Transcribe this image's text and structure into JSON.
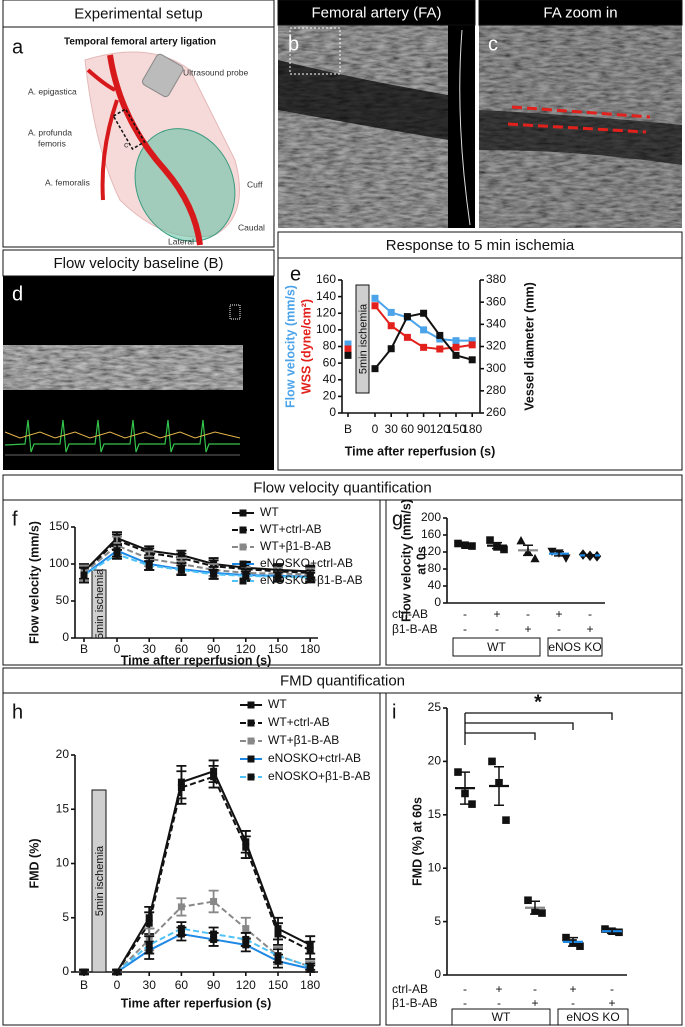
{
  "headers": {
    "setup": "Experimental setup",
    "femoral": "Femoral artery (FA)",
    "zoom": "FA zoom in",
    "response": "Response to 5 min ischemia",
    "baseline": "Flow velocity baseline (B)",
    "flow_quant": "Flow velocity quantification",
    "fmd_quant": "FMD quantification"
  },
  "panel_letters": [
    "a",
    "b",
    "c",
    "d",
    "e",
    "f",
    "g",
    "h",
    "i"
  ],
  "setup": {
    "title": "Temporal femoral artery ligation",
    "labels": [
      [
        "A. epigastica"
      ],
      [
        "Ultrasound probe"
      ],
      [
        "A. profunda",
        "femoris"
      ],
      [
        "c"
      ],
      [
        "A. femoralis"
      ],
      [
        "Cuff"
      ],
      [
        "Caudal"
      ],
      [
        "Lateral"
      ]
    ]
  },
  "chart_data": [
    {
      "type": "line",
      "categories": [
        "B",
        "0",
        "30",
        "60",
        "90",
        "120",
        "150",
        "180"
      ],
      "annotation": "5min ischemia",
      "connect_baseline": false,
      "xlabel": "Time after reperfusion (s)",
      "ylabel": [
        {
          "text": "Flow velocity (mm/s)",
          "color": "#4ba3ea"
        },
        {
          "text": "WSS (dyne/cm²)",
          "color": "#e3211c"
        }
      ],
      "y2label": "Vessel diameter (mm)",
      "ylim": [
        0,
        160
      ],
      "yticks": [
        0,
        20,
        40,
        60,
        80,
        100,
        120,
        140,
        160
      ],
      "y2lim": [
        260,
        380
      ],
      "y2ticks": [
        260,
        280,
        300,
        320,
        340,
        360,
        380
      ],
      "series": [
        {
          "color": "#4ba3ea",
          "values": [
            83,
            138,
            121,
            115,
            100,
            89,
            87,
            87
          ]
        },
        {
          "color": "#e3211c",
          "values": [
            77,
            129,
            105,
            91,
            79,
            77,
            79,
            82
          ]
        },
        {
          "color": "#111111",
          "axis": "y2",
          "values": [
            312,
            300,
            318,
            347,
            350,
            330,
            312,
            308
          ]
        }
      ]
    },
    {
      "type": "line",
      "categories": [
        "B",
        "0",
        "30",
        "60",
        "90",
        "120",
        "150",
        "180"
      ],
      "annotation": "5min ischemia",
      "connect_baseline": true,
      "legend": true,
      "xlabel": "Time after reperfusion (s)",
      "ylabel": "Flow velocity (mm/s)",
      "ylim": [
        0,
        150
      ],
      "yticks": [
        0,
        50,
        100,
        150
      ],
      "series": [
        {
          "name": "WT",
          "color": "#111111",
          "marker_color": "#111111",
          "dash": false,
          "values": [
            90,
            135,
            118,
            112,
            100,
            95,
            92,
            90
          ],
          "errors": [
            10,
            8,
            6,
            6,
            8,
            8,
            8,
            8
          ]
        },
        {
          "name": "WT+ctrl-AB",
          "color": "#111111",
          "marker_color": "#111111",
          "dash": true,
          "values": [
            88,
            132,
            115,
            108,
            97,
            93,
            90,
            88
          ],
          "errors": [
            10,
            8,
            6,
            6,
            8,
            8,
            8,
            8
          ]
        },
        {
          "name": "WT+β1-B-AB",
          "color": "#888888",
          "marker_color": "#888888",
          "dash": true,
          "values": [
            88,
            125,
            107,
            100,
            92,
            88,
            87,
            86
          ],
          "errors": [
            10,
            12,
            10,
            8,
            8,
            8,
            8,
            8
          ]
        },
        {
          "name": "eNOSKO+ctrl-AB",
          "color": "#1e88e5",
          "marker_color": "#111111",
          "dash": false,
          "values": [
            85,
            118,
            100,
            93,
            88,
            85,
            84,
            83
          ],
          "errors": [
            10,
            8,
            8,
            8,
            8,
            8,
            8,
            8
          ]
        },
        {
          "name": "eNOSKO+β1-B-AB",
          "color": "#4fc3f7",
          "marker_color": "#111111",
          "dash": true,
          "values": [
            85,
            113,
            98,
            92,
            86,
            84,
            83,
            82
          ],
          "errors": [
            10,
            6,
            6,
            6,
            6,
            6,
            6,
            6
          ]
        }
      ]
    },
    {
      "type": "dot",
      "ylabel": [
        "Flow velocity (mm/s)",
        "at 0s"
      ],
      "ylim": [
        0,
        200
      ],
      "yticks": [
        0,
        40,
        80,
        120,
        160,
        200
      ],
      "markers": [
        "square",
        "square",
        "triangle",
        "triangle-down",
        "diamond"
      ],
      "mean_colors": [
        "#111111",
        "#111111",
        "#888888",
        "#1e88e5",
        "#1e88e5"
      ],
      "points": [
        [
          140,
          136,
          134
        ],
        [
          148,
          132,
          126
        ],
        [
          146,
          120,
          104
        ],
        [
          122,
          118,
          106
        ],
        [
          114,
          111,
          110
        ]
      ],
      "means": [
        137,
        135,
        124,
        116,
        112
      ],
      "errors": [
        2,
        7,
        12,
        5,
        1.5
      ],
      "rows": [
        {
          "label": "ctrl-AB",
          "signs": [
            "-",
            "+",
            "-",
            "+",
            "-"
          ]
        },
        {
          "label": "β1-B-AB",
          "signs": [
            "-",
            "-",
            "+",
            "-",
            "+"
          ]
        }
      ],
      "groups": [
        "WT",
        "eNOS KO"
      ]
    },
    {
      "type": "line",
      "categories": [
        "B",
        "0",
        "30",
        "60",
        "90",
        "120",
        "150",
        "180"
      ],
      "annotation": "5min ischemia",
      "connect_baseline": false,
      "legend": true,
      "xlabel": "Time after reperfusion (s)",
      "ylabel": "FMD (%)",
      "ylim": [
        0,
        20
      ],
      "yticks": [
        0,
        5,
        10,
        15,
        20
      ],
      "series": [
        {
          "name": "WT",
          "color": "#111111",
          "marker_color": "#111111",
          "dash": false,
          "values": [
            0,
            0,
            5,
            17.5,
            18.5,
            12,
            4,
            2.5
          ],
          "errors": [
            0.2,
            0.2,
            1,
            1.5,
            1,
            1,
            1,
            0.8
          ]
        },
        {
          "name": "WT+ctrl-AB",
          "color": "#111111",
          "marker_color": "#111111",
          "dash": true,
          "values": [
            0,
            0,
            4.5,
            17,
            18,
            11.5,
            3.5,
            2
          ],
          "errors": [
            0.2,
            0.2,
            1,
            1.5,
            1,
            1,
            1,
            0.8
          ]
        },
        {
          "name": "WT+β1-B-AB",
          "color": "#888888",
          "marker_color": "#888888",
          "dash": true,
          "values": [
            0,
            0,
            3,
            6,
            6.5,
            4,
            1.5,
            0.5
          ],
          "errors": [
            0.2,
            0.2,
            1,
            0.8,
            1,
            1,
            0.8,
            0.5
          ]
        },
        {
          "name": "eNOSKO+ctrl-AB",
          "color": "#1e88e5",
          "marker_color": "#111111",
          "dash": false,
          "values": [
            0,
            0,
            2,
            3.5,
            3,
            2.5,
            1,
            0.3
          ],
          "errors": [
            0.2,
            0.2,
            0.8,
            0.6,
            0.6,
            0.6,
            0.6,
            0.3
          ]
        },
        {
          "name": "eNOSKO+β1-B-AB",
          "color": "#4fc3f7",
          "marker_color": "#111111",
          "dash": true,
          "values": [
            0,
            0,
            2.5,
            4,
            3.5,
            3,
            1.5,
            0.5
          ],
          "errors": [
            0.2,
            0.2,
            0.8,
            0.6,
            0.6,
            0.6,
            0.6,
            0.3
          ]
        }
      ]
    },
    {
      "type": "dot",
      "ylabel": [
        "FMD (%) at 60s"
      ],
      "ylim": [
        0,
        25
      ],
      "yticks": [
        0,
        5,
        10,
        15,
        20,
        25
      ],
      "annotation": "*",
      "markers": [
        "square",
        "square",
        "square",
        "square",
        "square"
      ],
      "mean_colors": [
        "#111111",
        "#111111",
        "#888888",
        "#1e88e5",
        "#1e88e5"
      ],
      "points": [
        [
          19,
          17,
          16
        ],
        [
          20,
          18,
          14.5
        ],
        [
          7,
          6,
          5.8
        ],
        [
          3.5,
          3,
          2.7
        ],
        [
          4.3,
          4.1,
          4
        ]
      ],
      "means": [
        17.5,
        17.7,
        6.3,
        3.1,
        4.1
      ],
      "errors": [
        1.5,
        1.8,
        0.6,
        0.4,
        0.2
      ],
      "rows": [
        {
          "label": "ctrl-AB",
          "signs": [
            "-",
            "+",
            "-",
            "+",
            "-"
          ]
        },
        {
          "label": "β1-B-AB",
          "signs": [
            "-",
            "-",
            "+",
            "-",
            "+"
          ]
        }
      ],
      "groups": [
        "WT",
        "eNOS KO"
      ]
    }
  ]
}
